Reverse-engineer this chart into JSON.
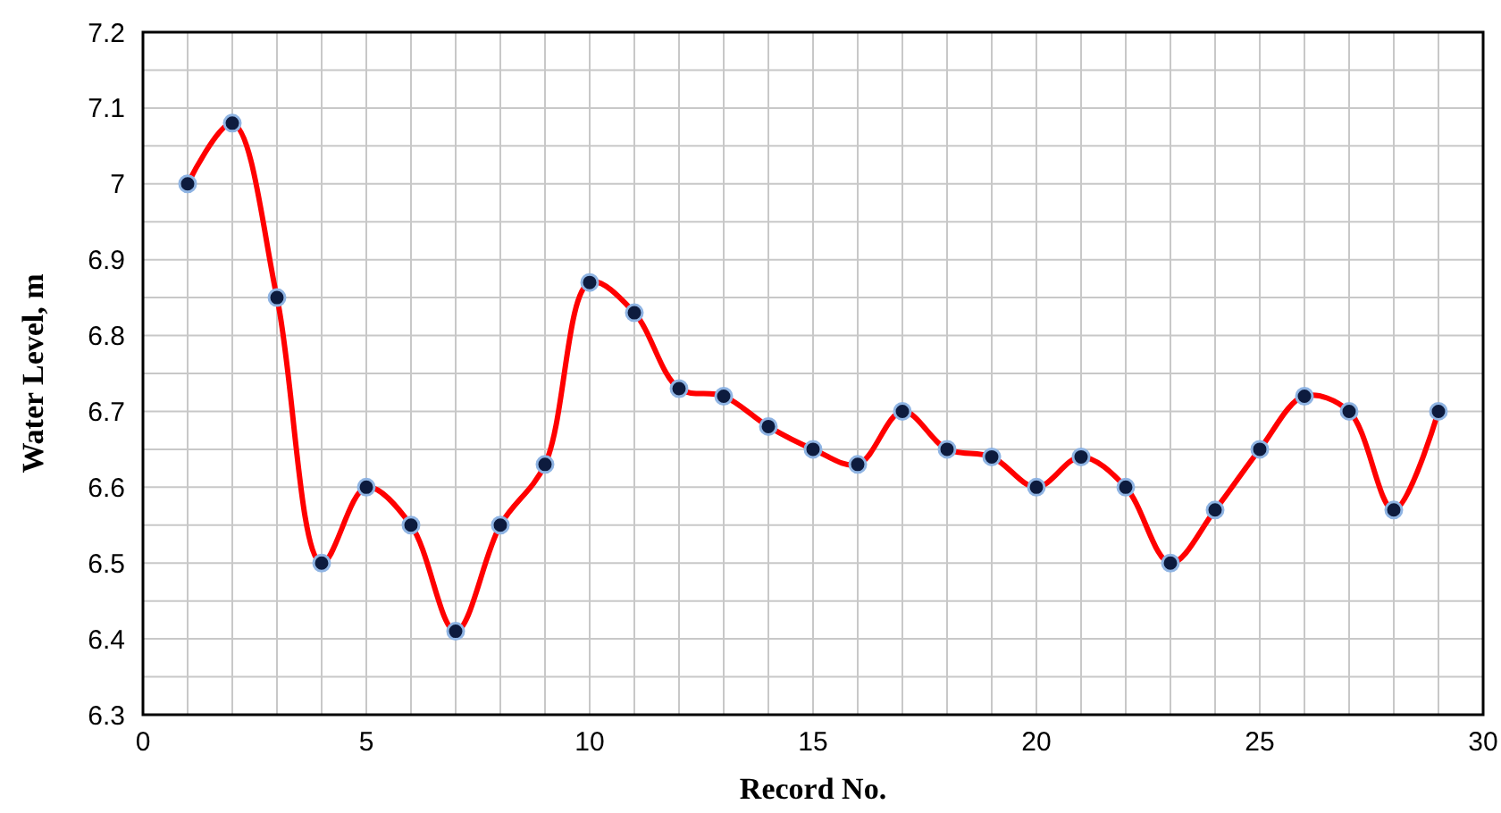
{
  "chart_data": {
    "type": "line",
    "xlabel": "Record No.",
    "ylabel": "Water Level, m",
    "x": [
      1,
      2,
      3,
      4,
      5,
      6,
      7,
      8,
      9,
      10,
      11,
      12,
      13,
      14,
      15,
      16,
      17,
      18,
      19,
      20,
      21,
      22,
      23,
      24,
      25,
      26,
      27,
      28,
      29
    ],
    "series": [
      {
        "color": "#ff0000",
        "values": [
          7.0,
          7.08,
          6.85,
          6.5,
          6.6,
          6.55,
          6.41,
          6.55,
          6.63,
          6.87,
          6.83,
          6.73,
          6.72,
          6.68,
          6.65,
          6.63,
          6.7,
          6.65,
          6.64,
          6.6,
          6.64,
          6.6,
          6.5,
          6.57,
          6.65,
          6.72,
          6.7,
          6.57,
          6.7
        ]
      }
    ],
    "xlim": [
      0,
      30
    ],
    "xticks": [
      0,
      {
        "value": 1,
        "label": null
      },
      {
        "value": 2,
        "label": null
      },
      {
        "value": 3,
        "label": null
      },
      {
        "value": 4,
        "label": null
      },
      5,
      {
        "value": 6,
        "label": null
      },
      {
        "value": 7,
        "label": null
      },
      {
        "value": 8,
        "label": null
      },
      {
        "value": 9,
        "label": null
      },
      10,
      {
        "value": 11,
        "label": null
      },
      {
        "value": 12,
        "label": null
      },
      {
        "value": 13,
        "label": null
      },
      {
        "value": 14,
        "label": null
      },
      15,
      {
        "value": 16,
        "label": null
      },
      {
        "value": 17,
        "label": null
      },
      {
        "value": 18,
        "label": null
      },
      {
        "value": 19,
        "label": null
      },
      20,
      {
        "value": 21,
        "label": null
      },
      {
        "value": 22,
        "label": null
      },
      {
        "value": 23,
        "label": null
      },
      {
        "value": 24,
        "label": null
      },
      25,
      {
        "value": 26,
        "label": null
      },
      {
        "value": 27,
        "label": null
      },
      {
        "value": 28,
        "label": null
      },
      {
        "value": 29,
        "label": null
      },
      30
    ],
    "ylim": [
      6.3,
      7.2
    ],
    "yticks": [
      6.3,
      {
        "value": 6.35,
        "label": null
      },
      6.4,
      {
        "value": 6.45,
        "label": null
      },
      6.5,
      {
        "value": 6.55,
        "label": null
      },
      6.6,
      {
        "value": 6.65,
        "label": null
      },
      6.7,
      {
        "value": 6.75,
        "label": null
      },
      6.8,
      {
        "value": 6.85,
        "label": null
      },
      6.9,
      {
        "value": 6.95,
        "label": null
      },
      7,
      {
        "value": 7.05,
        "label": null
      },
      7.1,
      {
        "value": 7.15,
        "label": null
      },
      7.2
    ],
    "grid": true,
    "marker": "circle",
    "line_style": "solid"
  }
}
